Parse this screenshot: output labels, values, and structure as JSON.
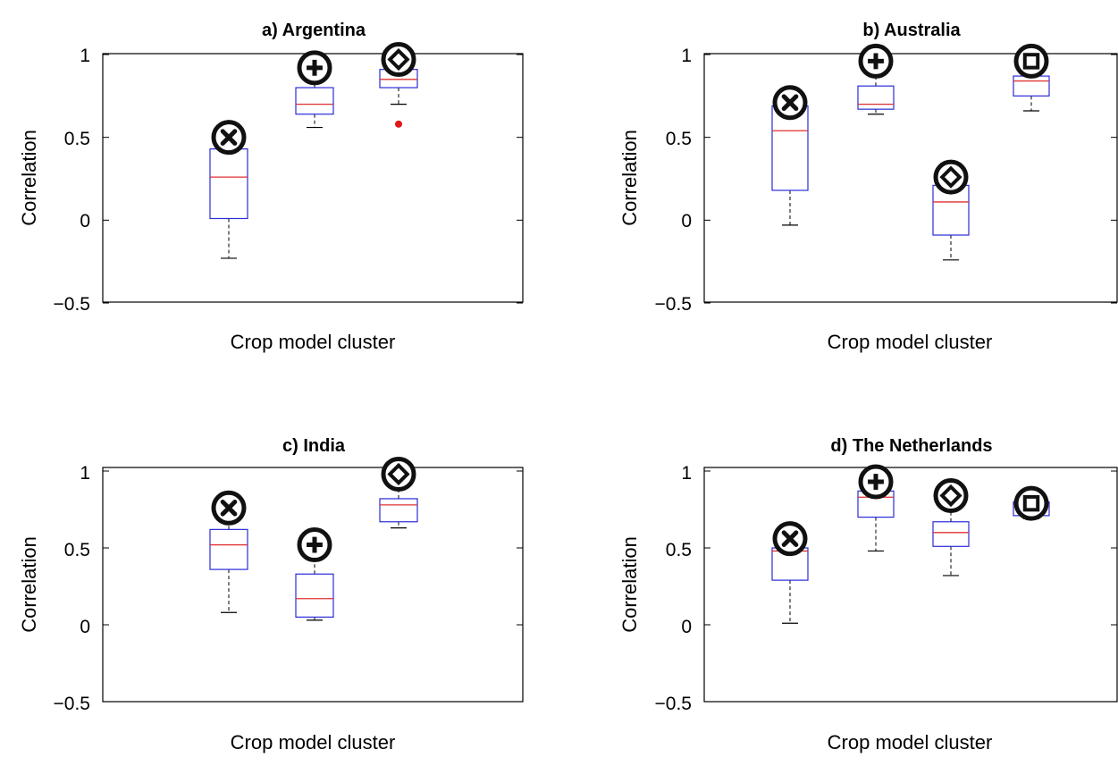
{
  "chart_data": [
    {
      "type": "box",
      "title": "a) Argentina",
      "xlabel": "Crop model cluster",
      "ylabel": "Correlation",
      "ylim": [
        -0.5,
        1
      ],
      "yticks": [
        "−0.5",
        "0",
        "0.5",
        "1"
      ],
      "boxes": [
        {
          "symbol": "cross",
          "whisker_low": -0.23,
          "q1": 0.01,
          "median": 0.26,
          "q3": 0.43,
          "whisker_high": 0.43,
          "marker_value": 0.5,
          "outliers": []
        },
        {
          "symbol": "plus",
          "whisker_low": 0.56,
          "q1": 0.64,
          "median": 0.7,
          "q3": 0.8,
          "whisker_high": 0.88,
          "marker_value": 0.92,
          "outliers": []
        },
        {
          "symbol": "diamond",
          "whisker_low": 0.7,
          "q1": 0.8,
          "median": 0.85,
          "q3": 0.91,
          "whisker_high": 0.92,
          "marker_value": 0.97,
          "outliers": [
            0.58
          ]
        }
      ]
    },
    {
      "type": "box",
      "title": "b) Australia",
      "xlabel": "Crop model cluster",
      "ylabel": "Correlation",
      "ylim": [
        -0.5,
        1
      ],
      "yticks": [
        "−0.5",
        "0",
        "0.5",
        "1"
      ],
      "boxes": [
        {
          "symbol": "cross",
          "whisker_low": -0.03,
          "q1": 0.18,
          "median": 0.54,
          "q3": 0.69,
          "whisker_high": 0.7,
          "marker_value": 0.71,
          "outliers": []
        },
        {
          "symbol": "plus",
          "whisker_low": 0.64,
          "q1": 0.67,
          "median": 0.7,
          "q3": 0.81,
          "whisker_high": 0.93,
          "marker_value": 0.96,
          "outliers": []
        },
        {
          "symbol": "diamond",
          "whisker_low": -0.24,
          "q1": -0.09,
          "median": 0.11,
          "q3": 0.21,
          "whisker_high": 0.21,
          "marker_value": 0.26,
          "outliers": []
        },
        {
          "symbol": "square",
          "whisker_low": 0.66,
          "q1": 0.75,
          "median": 0.84,
          "q3": 0.87,
          "whisker_high": 0.93,
          "marker_value": 0.96,
          "outliers": []
        }
      ]
    },
    {
      "type": "box",
      "title": "c) India",
      "xlabel": "Crop model cluster",
      "ylabel": "Correlation",
      "ylim": [
        -0.5,
        1
      ],
      "yticks": [
        "−0.5",
        "0",
        "0.5",
        "1"
      ],
      "boxes": [
        {
          "symbol": "cross",
          "whisker_low": 0.08,
          "q1": 0.36,
          "median": 0.52,
          "q3": 0.62,
          "whisker_high": 0.7,
          "marker_value": 0.76,
          "outliers": []
        },
        {
          "symbol": "plus",
          "whisker_low": 0.03,
          "q1": 0.05,
          "median": 0.17,
          "q3": 0.33,
          "whisker_high": 0.46,
          "marker_value": 0.52,
          "outliers": []
        },
        {
          "symbol": "diamond",
          "whisker_low": 0.63,
          "q1": 0.67,
          "median": 0.78,
          "q3": 0.82,
          "whisker_high": 0.93,
          "marker_value": 0.98,
          "outliers": []
        }
      ]
    },
    {
      "type": "box",
      "title": "d) The Netherlands",
      "xlabel": "Crop model cluster",
      "ylabel": "Correlation",
      "ylim": [
        -0.5,
        1
      ],
      "yticks": [
        "−0.5",
        "0",
        "0.5",
        "1"
      ],
      "boxes": [
        {
          "symbol": "cross",
          "whisker_low": 0.01,
          "q1": 0.29,
          "median": 0.48,
          "q3": 0.5,
          "whisker_high": 0.5,
          "marker_value": 0.56,
          "outliers": []
        },
        {
          "symbol": "plus",
          "whisker_low": 0.48,
          "q1": 0.7,
          "median": 0.83,
          "q3": 0.87,
          "whisker_high": 0.88,
          "marker_value": 0.93,
          "outliers": []
        },
        {
          "symbol": "diamond",
          "whisker_low": 0.32,
          "q1": 0.51,
          "median": 0.6,
          "q3": 0.67,
          "whisker_high": 0.78,
          "marker_value": 0.84,
          "outliers": []
        },
        {
          "symbol": "square",
          "whisker_low": 0.69,
          "q1": 0.71,
          "median": 0.77,
          "q3": 0.8,
          "whisker_high": 0.8,
          "marker_value": 0.79,
          "outliers": []
        }
      ]
    }
  ],
  "colors": {
    "box": "#2b2bd9",
    "median": "#e03030",
    "whisker": "#000000",
    "outlier": "#e01818",
    "marker": "#111111",
    "axis": "#000000"
  }
}
